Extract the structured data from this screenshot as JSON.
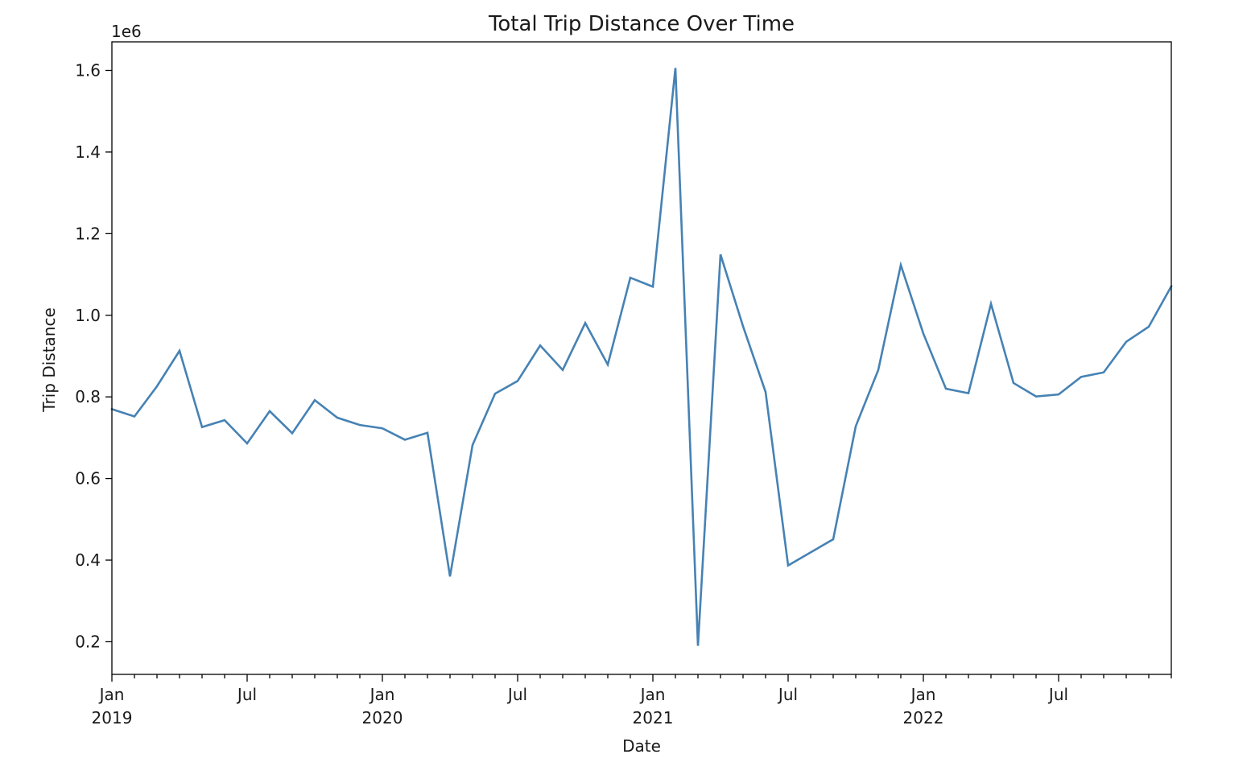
{
  "chart_data": {
    "type": "line",
    "title": "Total Trip Distance Over Time",
    "xlabel": "Date",
    "ylabel": "Trip Distance",
    "y_offset_label": "1e6",
    "ylim": [
      0.12,
      1.67
    ],
    "xlim": [
      "2019-01",
      "2022-12"
    ],
    "grid": false,
    "line_color": "#4682b4",
    "y_ticks": [
      {
        "value": 0.2,
        "label": "0.2"
      },
      {
        "value": 0.4,
        "label": "0.4"
      },
      {
        "value": 0.6,
        "label": "0.6"
      },
      {
        "value": 0.8,
        "label": "0.8"
      },
      {
        "value": 1.0,
        "label": "1.0"
      },
      {
        "value": 1.2,
        "label": "1.2"
      },
      {
        "value": 1.4,
        "label": "1.4"
      },
      {
        "value": 1.6,
        "label": "1.6"
      }
    ],
    "x_major_ticks": [
      {
        "date": "2019-01",
        "label": "Jan",
        "year": "2019"
      },
      {
        "date": "2019-07",
        "label": "Jul",
        "year": ""
      },
      {
        "date": "2020-01",
        "label": "Jan",
        "year": "2020"
      },
      {
        "date": "2020-07",
        "label": "Jul",
        "year": ""
      },
      {
        "date": "2021-01",
        "label": "Jan",
        "year": "2021"
      },
      {
        "date": "2021-07",
        "label": "Jul",
        "year": ""
      },
      {
        "date": "2022-01",
        "label": "Jan",
        "year": "2022"
      },
      {
        "date": "2022-07",
        "label": "Jul",
        "year": ""
      }
    ],
    "series": [
      {
        "x": [
          "2019-01",
          "2019-02",
          "2019-03",
          "2019-04",
          "2019-05",
          "2019-06",
          "2019-07",
          "2019-08",
          "2019-09",
          "2019-10",
          "2019-11",
          "2019-12",
          "2020-01",
          "2020-02",
          "2020-03",
          "2020-04",
          "2020-05",
          "2020-06",
          "2020-07",
          "2020-08",
          "2020-09",
          "2020-10",
          "2020-11",
          "2020-12",
          "2021-01",
          "2021-02",
          "2021-03",
          "2021-04",
          "2021-05",
          "2021-06",
          "2021-07",
          "2021-08",
          "2021-09",
          "2021-10",
          "2021-11",
          "2021-12",
          "2022-01",
          "2022-02",
          "2022-03",
          "2022-04",
          "2022-05",
          "2022-06",
          "2022-07",
          "2022-08",
          "2022-09",
          "2022-10",
          "2022-11",
          "2022-12"
        ],
        "values": [
          0.77,
          0.752,
          0.826,
          0.913,
          0.726,
          0.743,
          0.686,
          0.765,
          0.711,
          0.792,
          0.749,
          0.731,
          0.723,
          0.695,
          0.712,
          0.36,
          0.682,
          0.808,
          0.839,
          0.926,
          0.866,
          0.981,
          0.879,
          1.092,
          1.07,
          1.606,
          0.19,
          1.149,
          0.973,
          0.812,
          0.387,
          0.419,
          0.451,
          0.728,
          0.866,
          1.123,
          0.955,
          0.82,
          0.809,
          1.028,
          0.834,
          0.801,
          0.806,
          0.849,
          0.86,
          0.935,
          0.972,
          1.071
        ]
      }
    ]
  }
}
